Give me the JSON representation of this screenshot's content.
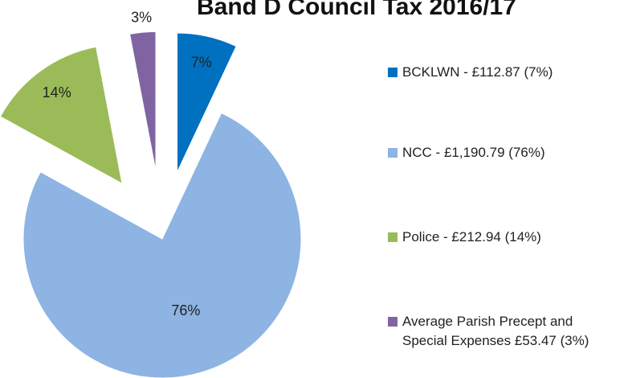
{
  "chart_data": {
    "type": "pie",
    "title": "Band D Council Tax 2016/17",
    "categories": [
      "BCKLWN - £112.87 (7%)",
      "NCC - £1,190.79 (76%)",
      "Police - £212.94 (14%)",
      "Average Parish Precept and Special Expenses £53.47 (3%)"
    ],
    "values": [
      7,
      76,
      14,
      3
    ],
    "value_labels": [
      "7%",
      "76%",
      "14%",
      "3%"
    ],
    "colors": [
      "#0070c0",
      "#8db4e2",
      "#9bbb59",
      "#8064a2"
    ],
    "exploded": [
      true,
      false,
      true,
      true
    ],
    "legend": "right"
  }
}
